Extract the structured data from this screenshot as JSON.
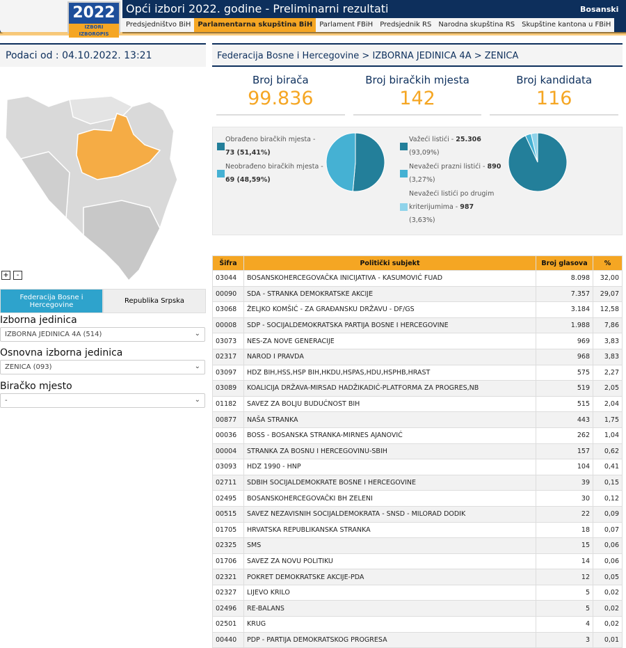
{
  "header": {
    "title": "Općі izbori 2022. godine - Preliminarni rezultati",
    "language": "Bosanski",
    "logo_text": "2022",
    "logo_sub": "IZBORI IZBOROPIS"
  },
  "tabs": [
    {
      "label": "Predsjedništvo BiH"
    },
    {
      "label": "Parlamentarna skupština BiH",
      "active": true
    },
    {
      "label": "Parlament FBiH"
    },
    {
      "label": "Predsjednik RS"
    },
    {
      "label": "Narodna skupština RS"
    },
    {
      "label": "Skupštine kantona u FBiH"
    }
  ],
  "left": {
    "podaci": "Podaci od : 04.10.2022. 13:21",
    "zoom_in": "+",
    "zoom_out": "-",
    "entity_fbih": "Federacija Bosne i Hercegovine",
    "entity_rs": "Republika Srpska",
    "izborna_label": "Izborna jedinica",
    "izborna_value": "IZBORNA JEDINICA 4A (514)",
    "osnovna_label": "Osnovna izborna jedinica",
    "osnovna_value": "ZENICA (093)",
    "biracko_label": "Biračko mjesto",
    "biracko_value": "-"
  },
  "breadcrumb": "Federacija Bosne i Hercegovine > IZBORNA JEDINICA 4A > ZENICA",
  "stats": [
    {
      "label": "Broj birača",
      "value": "99.836"
    },
    {
      "label": "Broj biračkih mjesta",
      "value": "142"
    },
    {
      "label": "Broj kandidata",
      "value": "116"
    }
  ],
  "colors": {
    "dark": "#237f9a",
    "mid": "#45b1d3",
    "light": "#8fd3ea",
    "accent": "#f5a623",
    "navy": "#0d2f5c"
  },
  "pie1": {
    "items": [
      {
        "label": "Obrađeno biračkih mjesta -",
        "value": "73 (51,41%)",
        "pct": 51.41
      },
      {
        "label": "Neobrađeno biračkih mjesta -",
        "value": "69 (48,59%)",
        "pct": 48.59
      }
    ]
  },
  "pie2": {
    "items": [
      {
        "label": "Važeći listići -",
        "value": "25.306",
        "pct_text": "(93,09%)",
        "pct": 93.09
      },
      {
        "label": "Nevažeći prazni listići -",
        "value": "890",
        "pct_text": "(3,27%)",
        "pct": 3.27
      },
      {
        "label": "Nevažeći listići po drugim",
        "label2": "kriterijumima -",
        "value": "987",
        "pct_text": "(3,63%)",
        "pct": 3.63
      }
    ]
  },
  "table": {
    "headers": [
      "Šifra",
      "Politički subjekt",
      "Broj glasova",
      "%"
    ],
    "rows": [
      [
        "03044",
        "BOSANSKOHERCEGOVAČKA INICIJATIVA - KASUMOVIĆ FUAD",
        "8.098",
        "32,00"
      ],
      [
        "00090",
        "SDA - STRANKA DEMOKRATSKE AKCIJE",
        "7.357",
        "29,07"
      ],
      [
        "03068",
        "ŽELJKO KOMŠIĆ - ZA GRAĐANSKU DRŽAVU - DF/GS",
        "3.184",
        "12,58"
      ],
      [
        "00008",
        "SDP - SOCIJALDEMOKRATSKA PARTIJA BOSNE I HERCEGOVINE",
        "1.988",
        "7,86"
      ],
      [
        "03073",
        "NES-ZA NOVE GENERACIJE",
        "969",
        "3,83"
      ],
      [
        "02317",
        "NAROD I PRAVDA",
        "968",
        "3,83"
      ],
      [
        "03097",
        "HDZ BIH,HSS,HSP BIH,HKDU,HSPAS,HDU,HSPHB,HRAST",
        "575",
        "2,27"
      ],
      [
        "03089",
        "KOALICIJA DRŽAVA-MIRSAD HADŽIKADIĆ-PLATFORMA ZA PROGRES,NB",
        "519",
        "2,05"
      ],
      [
        "01182",
        "SAVEZ ZA BOLJU BUDUĆNOST BIH",
        "515",
        "2,04"
      ],
      [
        "00877",
        "NAŠA STRANKA",
        "443",
        "1,75"
      ],
      [
        "00036",
        "BOSS - BOSANSKA STRANKA-MIRNES AJANOVIĆ",
        "262",
        "1,04"
      ],
      [
        "00004",
        "STRANKA ZA BOSNU I HERCEGOVINU-SBIH",
        "157",
        "0,62"
      ],
      [
        "03093",
        "HDZ 1990 - HNP",
        "104",
        "0,41"
      ],
      [
        "02711",
        "SDBIH SOCIJALDEMOKRATE BOSNE I HERCEGOVINE",
        "39",
        "0,15"
      ],
      [
        "02495",
        "BOSANSKOHERCEGOVAČKI BH ZELENI",
        "30",
        "0,12"
      ],
      [
        "00515",
        "SAVEZ NEZAVISNIH SOCIJALDEMOKRATA - SNSD - MILORAD DODIK",
        "22",
        "0,09"
      ],
      [
        "01705",
        "HRVATSKA REPUBLIKANSKA STRANKA",
        "18",
        "0,07"
      ],
      [
        "02325",
        "SMS",
        "15",
        "0,06"
      ],
      [
        "01706",
        "SAVEZ ZA NOVU POLITIKU",
        "14",
        "0,06"
      ],
      [
        "02321",
        "POKRET DEMOKRATSKE AKCIJE-PDA",
        "12",
        "0,05"
      ],
      [
        "02327",
        "LIJEVO KRILO",
        "5",
        "0,02"
      ],
      [
        "02496",
        "RE-BALANS",
        "5",
        "0,02"
      ],
      [
        "02501",
        "KRUG",
        "4",
        "0,02"
      ],
      [
        "00440",
        "PDP - PARTIJA DEMOKRATSKOG PROGRESA",
        "3",
        "0,01"
      ]
    ]
  }
}
